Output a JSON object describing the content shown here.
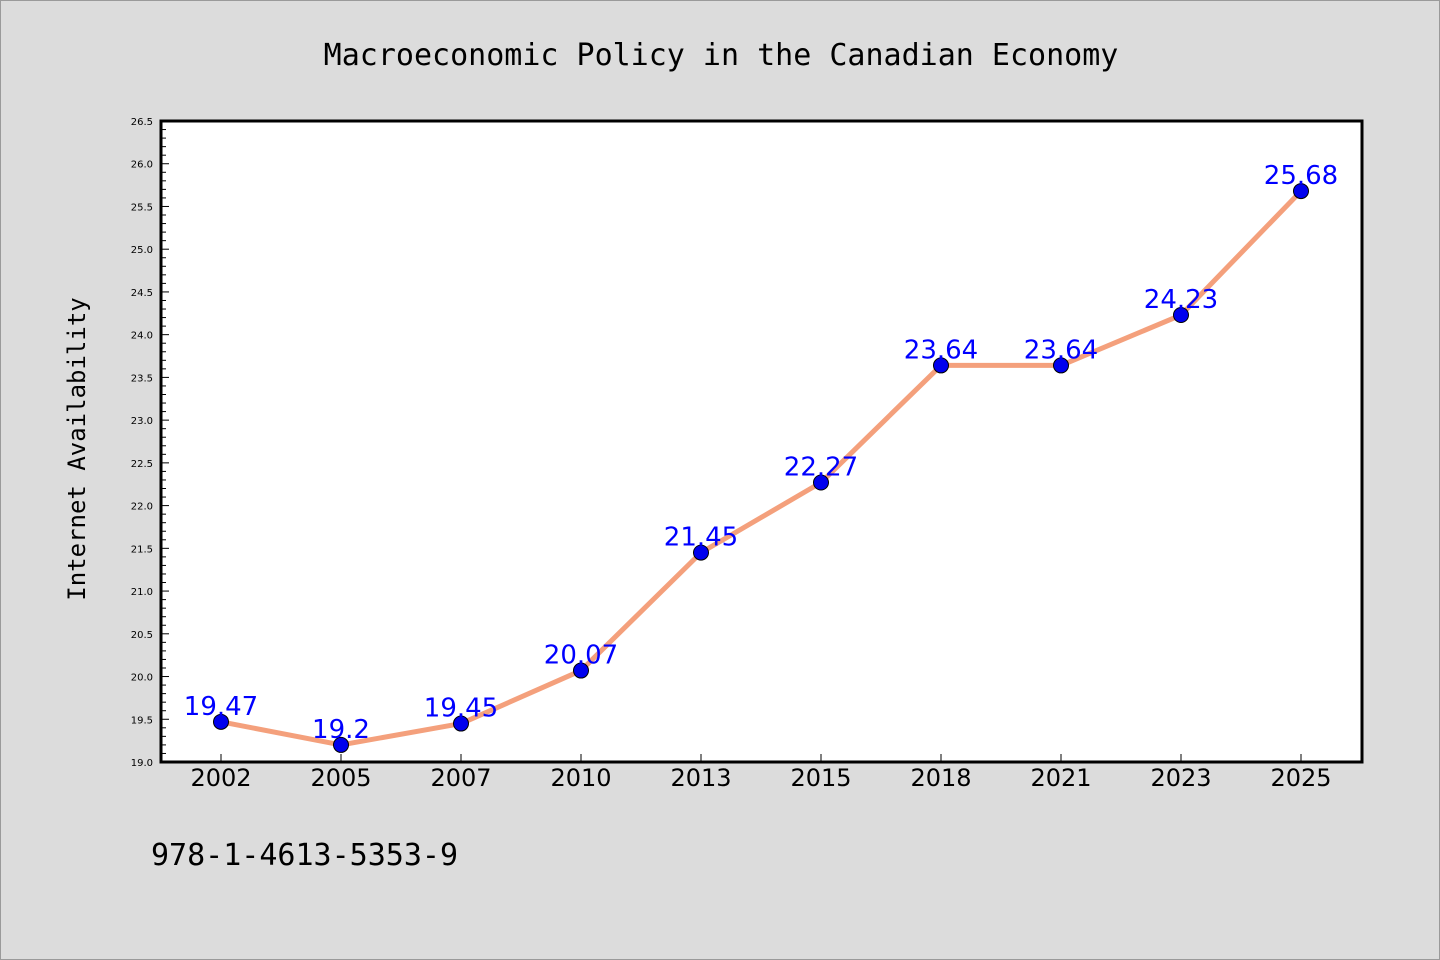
{
  "chart_data": {
    "type": "line",
    "title": "Macroeconomic Policy in the Canadian Economy",
    "xlabel": "",
    "ylabel": "Internet Availability",
    "categories": [
      "2002",
      "2005",
      "2007",
      "2010",
      "2013",
      "2015",
      "2018",
      "2021",
      "2023",
      "2025"
    ],
    "values": [
      19.47,
      19.2,
      19.45,
      20.07,
      21.45,
      22.27,
      23.64,
      23.64,
      24.23,
      25.68
    ],
    "data_labels": [
      "19.47",
      "19.2",
      "19.45",
      "20.07",
      "21.45",
      "22.27",
      "23.64",
      "23.64",
      "24.23",
      "25.68"
    ],
    "ylim": [
      19.0,
      26.5
    ],
    "yticks": [
      "19.0",
      "19.5",
      "20.0",
      "20.5",
      "21.0",
      "21.5",
      "22.0",
      "22.5",
      "23.0",
      "23.5",
      "24.0",
      "24.5",
      "25.0",
      "25.5",
      "26.0",
      "26.5"
    ],
    "grid": false,
    "legend": "none",
    "line_color": "#f4a07c",
    "marker_color": "#0000ee",
    "label_color": "#0000ff"
  },
  "footer": {
    "code": "978-1-4613-5353-9"
  }
}
